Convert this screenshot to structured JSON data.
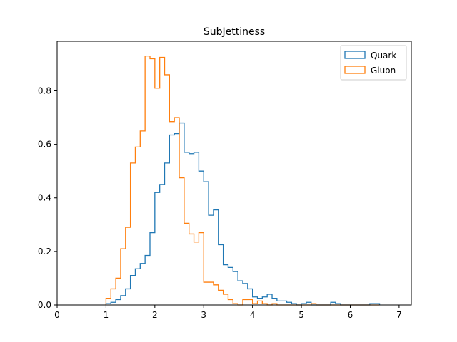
{
  "chart_data": {
    "type": "histogram",
    "title": "SubJettiness",
    "xlabel": "",
    "ylabel": "",
    "xlim": [
      0,
      7.25
    ],
    "ylim": [
      0,
      0.985
    ],
    "xticks": [
      0,
      1,
      2,
      3,
      4,
      5,
      6,
      7
    ],
    "yticks": [
      0.0,
      0.2,
      0.4,
      0.6,
      0.8
    ],
    "x_tick_labels": [
      "0",
      "1",
      "2",
      "3",
      "4",
      "5",
      "6",
      "7"
    ],
    "y_tick_labels": [
      "0.0",
      "0.2",
      "0.4",
      "0.6",
      "0.8"
    ],
    "grid": false,
    "legend_position": "top-right",
    "bin_edges": [
      1.0,
      1.1,
      1.2,
      1.3,
      1.4,
      1.5,
      1.6,
      1.7,
      1.8,
      1.9,
      2.0,
      2.1,
      2.2,
      2.3,
      2.4,
      2.5,
      2.6,
      2.7,
      2.8,
      2.9,
      3.0,
      3.1,
      3.2,
      3.3,
      3.4,
      3.5,
      3.6,
      3.7,
      3.8,
      3.9,
      4.0,
      4.1,
      4.2,
      4.3,
      4.4,
      4.5,
      4.6,
      4.7,
      4.8,
      4.9,
      5.0,
      5.1,
      5.2,
      5.3,
      5.4,
      5.5,
      5.6,
      5.7,
      5.8,
      5.9,
      6.0,
      6.1,
      6.2,
      6.3,
      6.4,
      6.5,
      6.6
    ],
    "series": [
      {
        "name": "Quark",
        "color": "#1f77b4",
        "values": [
          0.005,
          0.01,
          0.02,
          0.035,
          0.06,
          0.11,
          0.135,
          0.155,
          0.185,
          0.27,
          0.42,
          0.45,
          0.53,
          0.635,
          0.64,
          0.68,
          0.57,
          0.565,
          0.57,
          0.5,
          0.46,
          0.335,
          0.355,
          0.225,
          0.15,
          0.14,
          0.125,
          0.09,
          0.08,
          0.06,
          0.03,
          0.025,
          0.03,
          0.04,
          0.025,
          0.015,
          0.015,
          0.01,
          0.005,
          0.0,
          0.005,
          0.01,
          0.0,
          0.0,
          0.0,
          0.0,
          0.01,
          0.005,
          0.0,
          0.0,
          0.0,
          0.0,
          0.0,
          0.0,
          0.005,
          0.005
        ]
      },
      {
        "name": "Gluon",
        "color": "#ff7f0e",
        "values": [
          0.025,
          0.06,
          0.1,
          0.21,
          0.29,
          0.53,
          0.59,
          0.65,
          0.93,
          0.92,
          0.81,
          0.925,
          0.86,
          0.685,
          0.7,
          0.475,
          0.305,
          0.265,
          0.235,
          0.27,
          0.085,
          0.085,
          0.075,
          0.055,
          0.04,
          0.02,
          0.005,
          0.0,
          0.02,
          0.02,
          0.005,
          0.015,
          0.005,
          0.0,
          0.005,
          0.0,
          0.0,
          0.0,
          0.0,
          0.0,
          0.0,
          0.0,
          0.005,
          0.0,
          0.0,
          0.0,
          0.0,
          0.0,
          0.0,
          0.0,
          0.0,
          0.0,
          0.0,
          0.0,
          0.0,
          0.0
        ]
      }
    ]
  }
}
